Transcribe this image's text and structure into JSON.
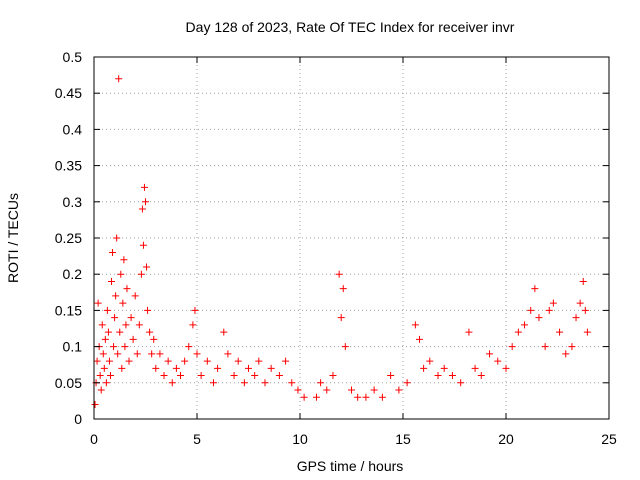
{
  "chart_data": {
    "type": "scatter",
    "title": "Day 128 of 2023, Rate Of TEC Index for receiver invr",
    "xlabel": "GPS time / hours",
    "ylabel": "ROTI / TECUs",
    "xlim": [
      0,
      25
    ],
    "ylim": [
      0,
      0.5
    ],
    "xticks": [
      0,
      5,
      10,
      15,
      20,
      25
    ],
    "xtick_labels": [
      "0",
      "5",
      "10",
      "15",
      "20",
      "25"
    ],
    "yticks": [
      0,
      0.05,
      0.1,
      0.15,
      0.2,
      0.25,
      0.3,
      0.35,
      0.4,
      0.45,
      0.5
    ],
    "ytick_labels": [
      "0",
      "0.05",
      "0.1",
      "0.15",
      "0.2",
      "0.25",
      "0.3",
      "0.35",
      "0.4",
      "0.45",
      "0.5"
    ],
    "grid": true,
    "marker": "+",
    "color": "#ff0000",
    "series": [
      {
        "name": "ROTI",
        "points": [
          [
            0.05,
            0.02
          ],
          [
            0.1,
            0.05
          ],
          [
            0.15,
            0.08
          ],
          [
            0.2,
            0.16
          ],
          [
            0.25,
            0.1
          ],
          [
            0.3,
            0.06
          ],
          [
            0.35,
            0.04
          ],
          [
            0.4,
            0.13
          ],
          [
            0.45,
            0.09
          ],
          [
            0.5,
            0.07
          ],
          [
            0.55,
            0.11
          ],
          [
            0.6,
            0.05
          ],
          [
            0.65,
            0.15
          ],
          [
            0.7,
            0.12
          ],
          [
            0.75,
            0.08
          ],
          [
            0.8,
            0.06
          ],
          [
            0.85,
            0.19
          ],
          [
            0.9,
            0.23
          ],
          [
            0.95,
            0.1
          ],
          [
            1.0,
            0.14
          ],
          [
            1.05,
            0.17
          ],
          [
            1.1,
            0.25
          ],
          [
            1.15,
            0.09
          ],
          [
            1.2,
            0.47
          ],
          [
            1.25,
            0.12
          ],
          [
            1.3,
            0.2
          ],
          [
            1.35,
            0.07
          ],
          [
            1.4,
            0.16
          ],
          [
            1.45,
            0.22
          ],
          [
            1.5,
            0.1
          ],
          [
            1.55,
            0.13
          ],
          [
            1.6,
            0.18
          ],
          [
            1.7,
            0.08
          ],
          [
            1.8,
            0.14
          ],
          [
            1.9,
            0.11
          ],
          [
            2.0,
            0.17
          ],
          [
            2.1,
            0.09
          ],
          [
            2.2,
            0.13
          ],
          [
            2.3,
            0.2
          ],
          [
            2.35,
            0.29
          ],
          [
            2.4,
            0.24
          ],
          [
            2.45,
            0.32
          ],
          [
            2.5,
            0.3
          ],
          [
            2.55,
            0.21
          ],
          [
            2.6,
            0.15
          ],
          [
            2.7,
            0.12
          ],
          [
            2.8,
            0.09
          ],
          [
            2.9,
            0.11
          ],
          [
            3.0,
            0.07
          ],
          [
            3.2,
            0.09
          ],
          [
            3.4,
            0.06
          ],
          [
            3.6,
            0.08
          ],
          [
            3.8,
            0.05
          ],
          [
            4.0,
            0.07
          ],
          [
            4.2,
            0.06
          ],
          [
            4.4,
            0.08
          ],
          [
            4.6,
            0.1
          ],
          [
            4.8,
            0.13
          ],
          [
            4.9,
            0.15
          ],
          [
            5.0,
            0.09
          ],
          [
            5.2,
            0.06
          ],
          [
            5.5,
            0.08
          ],
          [
            5.8,
            0.05
          ],
          [
            6.0,
            0.07
          ],
          [
            6.3,
            0.12
          ],
          [
            6.5,
            0.09
          ],
          [
            6.8,
            0.06
          ],
          [
            7.0,
            0.08
          ],
          [
            7.3,
            0.05
          ],
          [
            7.5,
            0.07
          ],
          [
            7.8,
            0.06
          ],
          [
            8.0,
            0.08
          ],
          [
            8.3,
            0.05
          ],
          [
            8.6,
            0.07
          ],
          [
            9.0,
            0.06
          ],
          [
            9.3,
            0.08
          ],
          [
            9.6,
            0.05
          ],
          [
            9.9,
            0.04
          ],
          [
            10.2,
            0.03
          ],
          [
            10.8,
            0.03
          ],
          [
            11.0,
            0.05
          ],
          [
            11.3,
            0.04
          ],
          [
            11.6,
            0.06
          ],
          [
            11.9,
            0.2
          ],
          [
            12.0,
            0.14
          ],
          [
            12.1,
            0.18
          ],
          [
            12.2,
            0.1
          ],
          [
            12.5,
            0.04
          ],
          [
            12.8,
            0.03
          ],
          [
            13.2,
            0.03
          ],
          [
            13.6,
            0.04
          ],
          [
            14.0,
            0.03
          ],
          [
            14.4,
            0.06
          ],
          [
            14.8,
            0.04
          ],
          [
            15.2,
            0.05
          ],
          [
            15.6,
            0.13
          ],
          [
            15.8,
            0.11
          ],
          [
            16.0,
            0.07
          ],
          [
            16.3,
            0.08
          ],
          [
            16.7,
            0.06
          ],
          [
            17.0,
            0.07
          ],
          [
            17.4,
            0.06
          ],
          [
            17.8,
            0.05
          ],
          [
            18.2,
            0.12
          ],
          [
            18.5,
            0.07
          ],
          [
            18.8,
            0.06
          ],
          [
            19.2,
            0.09
          ],
          [
            19.6,
            0.08
          ],
          [
            20.0,
            0.07
          ],
          [
            20.3,
            0.1
          ],
          [
            20.6,
            0.12
          ],
          [
            20.9,
            0.13
          ],
          [
            21.2,
            0.15
          ],
          [
            21.4,
            0.18
          ],
          [
            21.6,
            0.14
          ],
          [
            21.9,
            0.1
          ],
          [
            22.1,
            0.15
          ],
          [
            22.3,
            0.16
          ],
          [
            22.6,
            0.12
          ],
          [
            22.9,
            0.09
          ],
          [
            23.2,
            0.1
          ],
          [
            23.4,
            0.14
          ],
          [
            23.6,
            0.16
          ],
          [
            23.75,
            0.19
          ],
          [
            23.85,
            0.15
          ],
          [
            23.95,
            0.12
          ]
        ]
      }
    ]
  }
}
